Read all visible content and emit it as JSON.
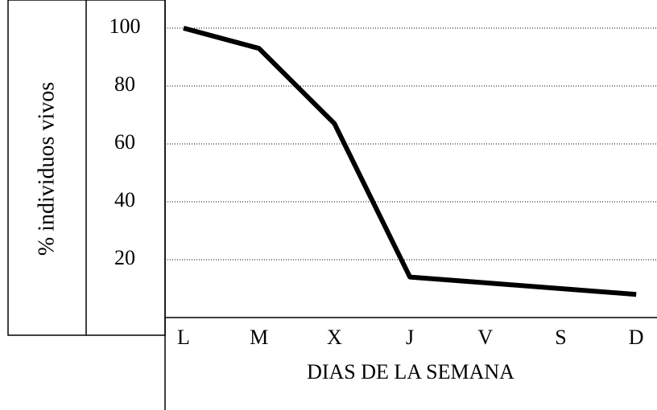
{
  "chart_data": {
    "type": "line",
    "y_label": "% individuos vivos",
    "x_label": "DIAS DE LA SEMANA",
    "categories": [
      "L",
      "M",
      "X",
      "J",
      "V",
      "S",
      "D"
    ],
    "values": [
      100,
      93,
      67,
      14,
      12,
      10,
      8
    ],
    "color": "#000000",
    "ylim": [
      0,
      110
    ],
    "yticks": [
      20,
      40,
      60,
      80,
      100
    ],
    "grid": true
  }
}
